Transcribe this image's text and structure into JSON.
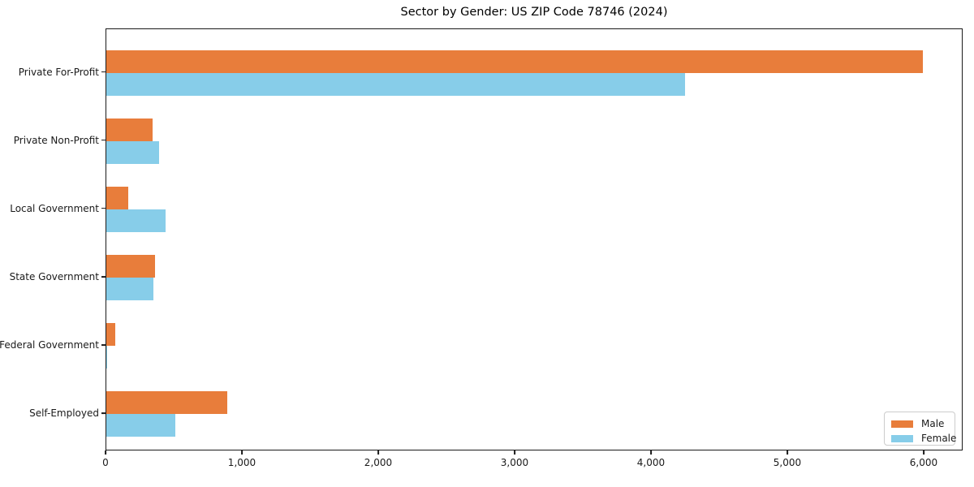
{
  "chart_data": {
    "type": "bar",
    "orientation": "horizontal",
    "title": "Sector by Gender: US ZIP Code 78746 (2024)",
    "xlabel": "",
    "ylabel": "",
    "categories": [
      "Private For-Profit",
      "Private Non-Profit",
      "Local Government",
      "State Government",
      "Federal Government",
      "Self-Employed"
    ],
    "series": [
      {
        "name": "Male",
        "color": "#e87d3b",
        "values": [
          5990,
          340,
          160,
          360,
          65,
          885
        ]
      },
      {
        "name": "Female",
        "color": "#87cde9",
        "values": [
          4245,
          385,
          435,
          345,
          5,
          505
        ]
      }
    ],
    "xlim": [
      0,
      6286
    ],
    "x_ticks": [
      0,
      1000,
      2000,
      3000,
      4000,
      5000,
      6000
    ],
    "x_tick_labels": [
      "0",
      "1,000",
      "2,000",
      "3,000",
      "4,000",
      "5,000",
      "6,000"
    ],
    "grid": false,
    "legend_position": "lower right",
    "axis_color": "#1a1a1a"
  }
}
